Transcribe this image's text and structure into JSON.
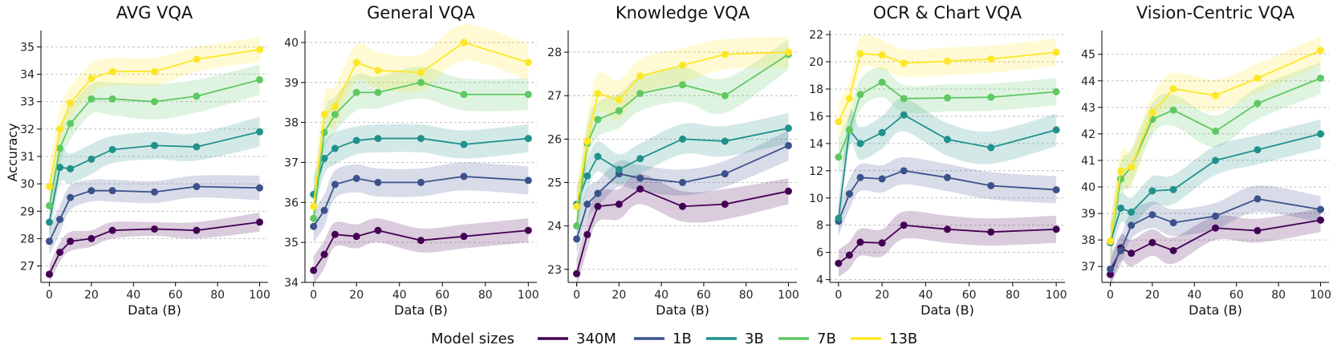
{
  "figure": {
    "ylabel": "Accuracy",
    "legend": {
      "title": "Model sizes",
      "entries": [
        "340M",
        "1B",
        "3B",
        "7B",
        "13B"
      ],
      "colors": [
        "#440154",
        "#3b528b",
        "#21918c",
        "#5ec962",
        "#fde725"
      ]
    }
  },
  "chart_data": [
    {
      "type": "line",
      "title": "AVG VQA",
      "xlabel": "Data (B)",
      "ylabel": "Accuracy",
      "x": [
        0,
        5,
        10,
        20,
        30,
        50,
        70,
        100
      ],
      "xlim": [
        -4,
        104
      ],
      "xticks": [
        0,
        20,
        40,
        60,
        80,
        100
      ],
      "ylim": [
        26.4,
        35.6
      ],
      "yticks": [
        27,
        28,
        29,
        30,
        31,
        32,
        33,
        34,
        35
      ],
      "series": [
        {
          "name": "340M",
          "values": [
            26.7,
            27.5,
            27.9,
            28.0,
            28.3,
            28.35,
            28.3,
            28.6
          ],
          "band": [
            0.35,
            0.35,
            0.35,
            0.3,
            0.3,
            0.25,
            0.3,
            0.35
          ]
        },
        {
          "name": "1B",
          "values": [
            27.9,
            28.7,
            29.5,
            29.75,
            29.75,
            29.7,
            29.9,
            29.85
          ],
          "band": [
            0.5,
            0.5,
            0.45,
            0.4,
            0.4,
            0.4,
            0.4,
            0.45
          ]
        },
        {
          "name": "3B",
          "values": [
            28.6,
            30.6,
            30.55,
            30.9,
            31.25,
            31.4,
            31.35,
            31.9
          ],
          "band": [
            0.6,
            0.6,
            0.55,
            0.55,
            0.5,
            0.5,
            0.5,
            0.55
          ]
        },
        {
          "name": "7B",
          "values": [
            29.2,
            31.3,
            32.2,
            33.1,
            33.1,
            33.0,
            33.2,
            33.8
          ],
          "band": [
            0.7,
            0.65,
            0.6,
            0.55,
            0.6,
            0.65,
            0.6,
            0.55
          ]
        },
        {
          "name": "13B",
          "values": [
            29.9,
            32.0,
            32.95,
            33.85,
            34.1,
            34.1,
            34.55,
            34.9
          ],
          "band": [
            0.8,
            0.7,
            0.6,
            0.55,
            0.5,
            0.5,
            0.45,
            0.45
          ]
        }
      ]
    },
    {
      "type": "line",
      "title": "General VQA",
      "xlabel": "Data (B)",
      "ylabel": "",
      "x": [
        0,
        5,
        10,
        20,
        30,
        50,
        70,
        100
      ],
      "xlim": [
        -4,
        104
      ],
      "xticks": [
        0,
        20,
        40,
        60,
        80,
        100
      ],
      "ylim": [
        34.0,
        40.3
      ],
      "yticks": [
        34,
        35,
        36,
        37,
        38,
        39,
        40
      ],
      "series": [
        {
          "name": "340M",
          "values": [
            34.3,
            34.7,
            35.2,
            35.15,
            35.3,
            35.05,
            35.15,
            35.3
          ],
          "band": [
            0.35,
            0.35,
            0.3,
            0.3,
            0.3,
            0.3,
            0.3,
            0.3
          ]
        },
        {
          "name": "1B",
          "values": [
            35.4,
            35.8,
            36.45,
            36.6,
            36.5,
            36.5,
            36.65,
            36.55
          ],
          "band": [
            0.4,
            0.4,
            0.35,
            0.35,
            0.35,
            0.35,
            0.35,
            0.35
          ]
        },
        {
          "name": "3B",
          "values": [
            36.2,
            37.1,
            37.35,
            37.55,
            37.6,
            37.6,
            37.45,
            37.6
          ],
          "band": [
            0.45,
            0.4,
            0.4,
            0.35,
            0.35,
            0.35,
            0.35,
            0.35
          ]
        },
        {
          "name": "7B",
          "values": [
            35.6,
            37.75,
            38.2,
            38.75,
            38.75,
            39.0,
            38.7,
            38.7
          ],
          "band": [
            0.5,
            0.5,
            0.45,
            0.45,
            0.4,
            0.4,
            0.4,
            0.4
          ]
        },
        {
          "name": "13B",
          "values": [
            35.9,
            38.2,
            38.4,
            39.5,
            39.3,
            39.25,
            40.0,
            39.5
          ],
          "band": [
            0.55,
            0.5,
            0.5,
            0.45,
            0.45,
            0.45,
            0.45,
            0.45
          ]
        }
      ]
    },
    {
      "type": "line",
      "title": "Knowledge VQA",
      "xlabel": "Data (B)",
      "ylabel": "",
      "x": [
        0,
        5,
        10,
        20,
        30,
        50,
        70,
        100
      ],
      "xlim": [
        -4,
        104
      ],
      "xticks": [
        0,
        20,
        40,
        60,
        80,
        100
      ],
      "ylim": [
        22.7,
        28.5
      ],
      "yticks": [
        23,
        24,
        25,
        26,
        27,
        28
      ],
      "series": [
        {
          "name": "340M",
          "values": [
            22.9,
            23.8,
            24.45,
            24.5,
            24.85,
            24.45,
            24.5,
            24.8
          ],
          "band": [
            0.35,
            0.35,
            0.35,
            0.35,
            0.35,
            0.35,
            0.35,
            0.3
          ]
        },
        {
          "name": "1B",
          "values": [
            23.7,
            24.5,
            24.75,
            25.2,
            25.1,
            25.0,
            25.2,
            25.85
          ],
          "band": [
            0.35,
            0.35,
            0.3,
            0.3,
            0.3,
            0.3,
            0.3,
            0.35
          ]
        },
        {
          "name": "3B",
          "values": [
            24.5,
            25.15,
            25.6,
            25.3,
            25.55,
            26.0,
            25.95,
            26.25
          ],
          "band": [
            0.4,
            0.35,
            0.35,
            0.35,
            0.35,
            0.35,
            0.35,
            0.35
          ]
        },
        {
          "name": "7B",
          "values": [
            24.0,
            25.9,
            26.45,
            26.65,
            27.05,
            27.25,
            27.0,
            27.95
          ],
          "band": [
            0.45,
            0.45,
            0.4,
            0.4,
            0.4,
            0.4,
            0.4,
            0.35
          ]
        },
        {
          "name": "13B",
          "values": [
            24.45,
            25.95,
            27.05,
            26.9,
            27.45,
            27.7,
            27.95,
            28.0
          ],
          "band": [
            0.5,
            0.5,
            0.45,
            0.45,
            0.4,
            0.4,
            0.35,
            0.35
          ]
        }
      ]
    },
    {
      "type": "line",
      "title": "OCR & Chart VQA",
      "xlabel": "Data (B)",
      "ylabel": "",
      "x": [
        0,
        5,
        10,
        20,
        30,
        50,
        70,
        100
      ],
      "xlim": [
        -4,
        104
      ],
      "xticks": [
        0,
        20,
        40,
        60,
        80,
        100
      ],
      "ylim": [
        3.8,
        22.3
      ],
      "yticks": [
        4,
        6,
        8,
        10,
        12,
        14,
        16,
        18,
        20,
        22
      ],
      "series": [
        {
          "name": "340M",
          "values": [
            5.2,
            5.8,
            6.75,
            6.7,
            8.0,
            7.7,
            7.5,
            7.7
          ],
          "band": [
            1.0,
            1.0,
            1.0,
            1.0,
            1.0,
            1.0,
            1.0,
            1.0
          ]
        },
        {
          "name": "1B",
          "values": [
            8.3,
            10.3,
            11.5,
            11.4,
            12.0,
            11.5,
            10.9,
            10.6
          ],
          "band": [
            1.1,
            1.1,
            1.0,
            1.0,
            1.0,
            1.0,
            1.0,
            1.0
          ]
        },
        {
          "name": "3B",
          "values": [
            8.5,
            15.0,
            14.0,
            14.8,
            16.1,
            14.3,
            13.7,
            15.0
          ],
          "band": [
            1.3,
            1.2,
            1.2,
            1.2,
            1.2,
            1.2,
            1.2,
            1.2
          ]
        },
        {
          "name": "7B",
          "values": [
            13.0,
            15.0,
            17.6,
            18.5,
            17.3,
            17.35,
            17.4,
            17.8
          ],
          "band": [
            1.3,
            1.2,
            1.1,
            1.1,
            1.0,
            1.0,
            1.0,
            1.0
          ]
        },
        {
          "name": "13B",
          "values": [
            15.6,
            17.3,
            20.6,
            20.5,
            19.9,
            20.05,
            20.2,
            20.7
          ],
          "band": [
            1.4,
            1.3,
            1.2,
            1.1,
            1.0,
            1.0,
            1.0,
            1.0
          ]
        }
      ]
    },
    {
      "type": "line",
      "title": "Vision-Centric VQA",
      "xlabel": "Data (B)",
      "ylabel": "",
      "x": [
        0,
        5,
        10,
        20,
        30,
        50,
        70,
        100
      ],
      "xlim": [
        -4,
        104
      ],
      "xticks": [
        0,
        20,
        40,
        60,
        80,
        100
      ],
      "ylim": [
        36.4,
        45.9
      ],
      "yticks": [
        37,
        38,
        39,
        40,
        41,
        42,
        43,
        44,
        45
      ],
      "series": [
        {
          "name": "340M",
          "values": [
            36.7,
            37.7,
            37.5,
            37.9,
            37.6,
            38.45,
            38.35,
            38.75
          ],
          "band": [
            0.5,
            0.5,
            0.5,
            0.5,
            0.5,
            0.45,
            0.45,
            0.45
          ]
        },
        {
          "name": "1B",
          "values": [
            36.9,
            37.6,
            38.55,
            38.95,
            38.65,
            38.9,
            39.55,
            39.15
          ],
          "band": [
            0.55,
            0.55,
            0.5,
            0.5,
            0.5,
            0.5,
            0.5,
            0.5
          ]
        },
        {
          "name": "3B",
          "values": [
            37.9,
            39.2,
            39.05,
            39.85,
            39.9,
            41.0,
            41.4,
            42.0
          ],
          "band": [
            0.6,
            0.55,
            0.55,
            0.55,
            0.55,
            0.55,
            0.55,
            0.55
          ]
        },
        {
          "name": "7B",
          "values": [
            37.95,
            40.3,
            40.75,
            42.55,
            42.9,
            42.1,
            43.15,
            44.1
          ],
          "band": [
            0.7,
            0.65,
            0.65,
            0.6,
            0.6,
            0.6,
            0.6,
            0.6
          ]
        },
        {
          "name": "13B",
          "values": [
            37.95,
            40.6,
            40.75,
            42.8,
            43.7,
            43.45,
            44.1,
            45.15
          ],
          "band": [
            0.75,
            0.7,
            0.7,
            0.65,
            0.6,
            0.6,
            0.55,
            0.55
          ]
        }
      ]
    }
  ]
}
